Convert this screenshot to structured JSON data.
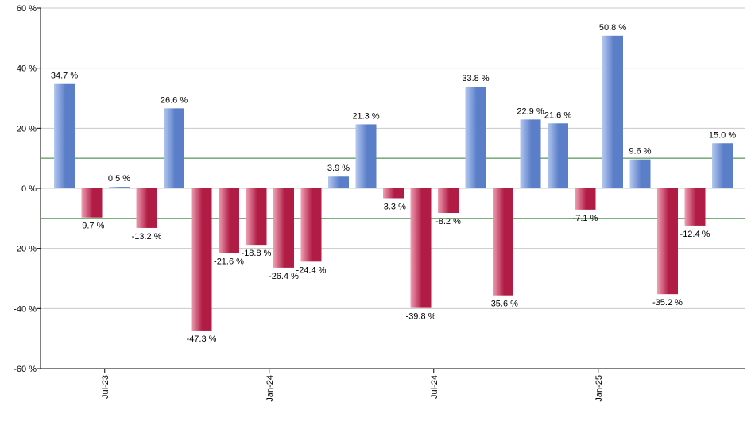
{
  "chart_data": {
    "type": "bar",
    "title": "",
    "xlabel": "",
    "ylabel": "",
    "ylim": [
      -60,
      60
    ],
    "y_ticks": [
      60,
      40,
      20,
      0,
      -20,
      -40,
      -60
    ],
    "y_tick_suffix": " %",
    "grid": true,
    "reference_lines": [
      10,
      -10
    ],
    "x_tick_labels": [
      {
        "label": "Jul-23",
        "index": 1
      },
      {
        "label": "Jan-24",
        "index": 7
      },
      {
        "label": "Jul-24",
        "index": 13
      },
      {
        "label": "Jan-25",
        "index": 19
      }
    ],
    "values": [
      34.7,
      -9.7,
      0.5,
      -13.2,
      26.6,
      -47.3,
      -21.6,
      -18.8,
      -26.4,
      -24.4,
      3.9,
      21.3,
      -3.3,
      -39.8,
      -8.2,
      33.8,
      -35.6,
      22.9,
      21.6,
      -7.1,
      50.8,
      9.6,
      -35.2,
      -12.4,
      15.0
    ],
    "data_labels": [
      "34.7 %",
      "-9.7 %",
      "0.5 %",
      "-13.2 %",
      "26.6 %",
      "-47.3 %",
      "-21.6 %",
      "-18.8 %",
      "-26.4 %",
      "-24.4 %",
      "3.9 %",
      "21.3 %",
      "-3.3 %",
      "-39.8 %",
      "-8.2 %",
      "33.8 %",
      "-35.6 %",
      "22.9 %",
      "21.6 %",
      "-7.1 %",
      "50.8 %",
      "9.6 %",
      "-35.2 %",
      "-12.4 %",
      "15.0 %"
    ],
    "colors": {
      "positive_light": "#b4c8f0",
      "positive_dark": "#5a7ec8",
      "negative_light": "#f0a0b4",
      "negative_dark": "#b01c44",
      "grid": "#c8c8c8",
      "reference": "#2e7d32",
      "axis": "#000000"
    }
  }
}
